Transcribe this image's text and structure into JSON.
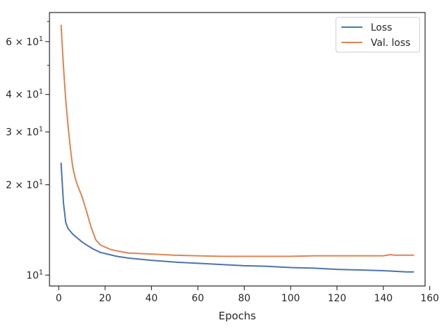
{
  "chart_data": {
    "type": "line",
    "title": "",
    "xlabel": "Epochs",
    "ylabel": "",
    "xlim": [
      -4,
      158
    ],
    "ylim": [
      9.2,
      75
    ],
    "yscale": "log",
    "grid": false,
    "legend_position": "top-right",
    "x_ticks": [
      0,
      20,
      40,
      60,
      80,
      100,
      120,
      140,
      160
    ],
    "y_major_ticks": [
      {
        "value": 10,
        "base": "10",
        "exp": "1"
      },
      {
        "value": 20,
        "base": "2 × 10",
        "exp": "1"
      },
      {
        "value": 30,
        "base": "3 × 10",
        "exp": "1"
      },
      {
        "value": 40,
        "base": "4 × 10",
        "exp": "1"
      },
      {
        "value": 60,
        "base": "6 × 10",
        "exp": "1"
      }
    ],
    "y_minor_ticks": [
      50,
      70
    ],
    "series": [
      {
        "name": "Loss",
        "color": "#4c72b0",
        "x": [
          1,
          2,
          3,
          4,
          5,
          6,
          8,
          10,
          12,
          15,
          18,
          20,
          25,
          30,
          40,
          50,
          60,
          70,
          80,
          90,
          100,
          110,
          120,
          130,
          140,
          145,
          150,
          153
        ],
        "y": [
          23.6,
          17.5,
          15.0,
          14.3,
          14.0,
          13.7,
          13.3,
          12.9,
          12.6,
          12.2,
          11.9,
          11.8,
          11.55,
          11.4,
          11.2,
          11.05,
          10.95,
          10.85,
          10.75,
          10.7,
          10.6,
          10.55,
          10.45,
          10.4,
          10.35,
          10.3,
          10.25,
          10.25
        ]
      },
      {
        "name": "Val. loss",
        "color": "#dd8452",
        "x": [
          1,
          2,
          3,
          4,
          5,
          6,
          7,
          8,
          10,
          12,
          14,
          16,
          18,
          20,
          22,
          25,
          30,
          40,
          50,
          60,
          70,
          80,
          90,
          100,
          110,
          120,
          130,
          140,
          143,
          145,
          150,
          153
        ],
        "y": [
          68.0,
          50.0,
          38.5,
          31.5,
          26.5,
          23.0,
          21.2,
          20.0,
          18.3,
          16.3,
          14.4,
          13.1,
          12.6,
          12.4,
          12.2,
          12.05,
          11.85,
          11.75,
          11.65,
          11.6,
          11.55,
          11.55,
          11.55,
          11.55,
          11.6,
          11.6,
          11.6,
          11.6,
          11.7,
          11.65,
          11.65,
          11.65
        ]
      }
    ]
  }
}
